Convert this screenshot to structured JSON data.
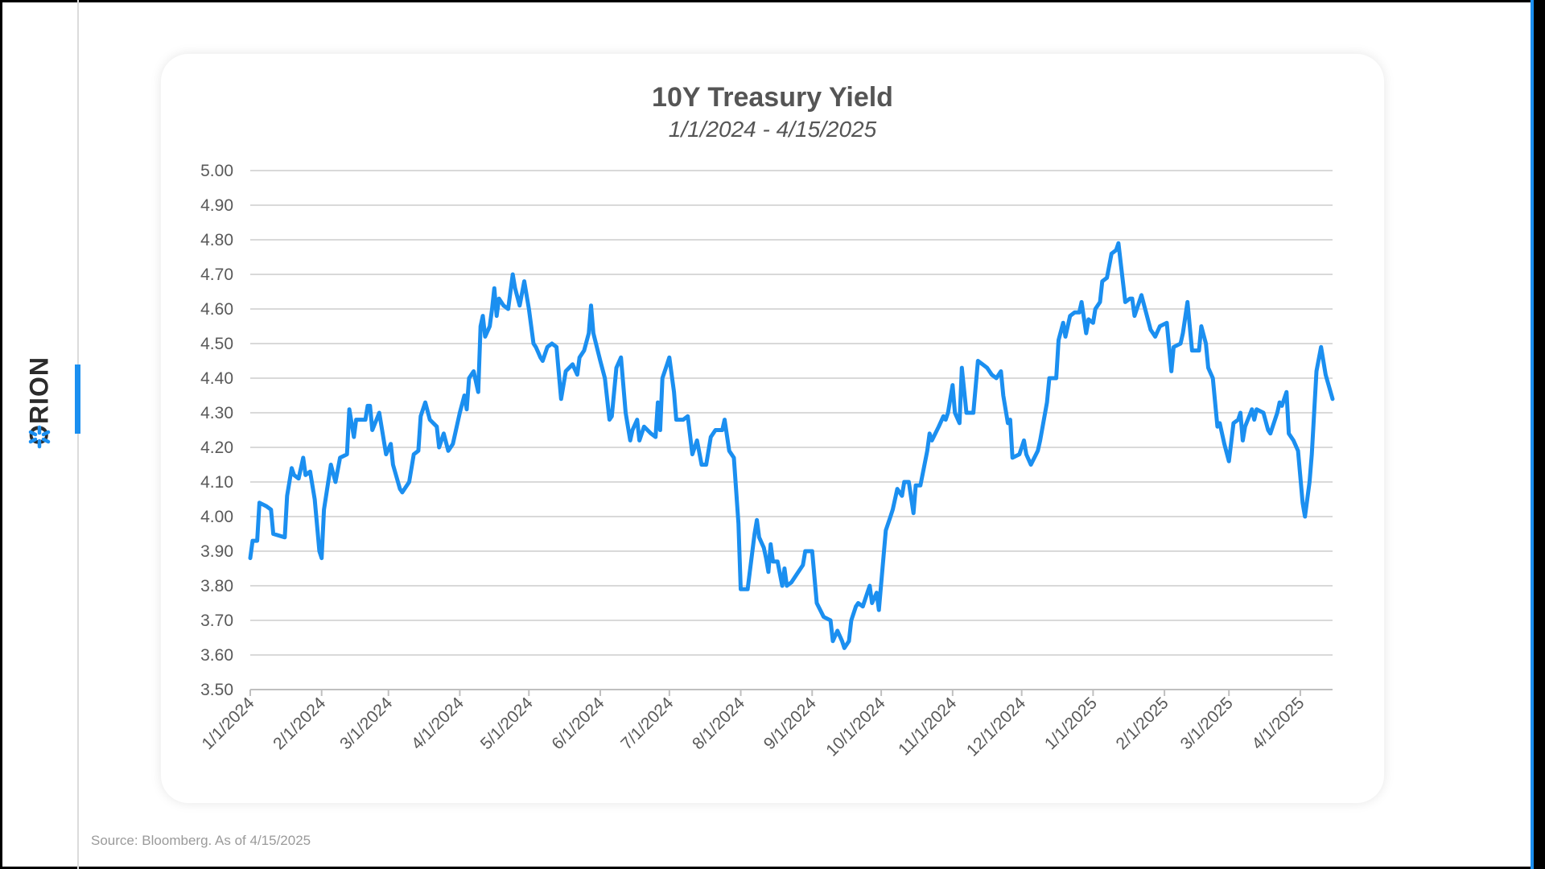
{
  "brand": {
    "logo_text": "ORION",
    "accent": "#1b8ff0"
  },
  "footer": {
    "source": "Source: Bloomberg. As of 4/15/2025"
  },
  "chart_data": {
    "type": "line",
    "title": "10Y Treasury Yield",
    "subtitle": "1/1/2024 - 4/15/2025",
    "xlabel": "",
    "ylabel": "",
    "x_unit": "days since 1/1/2024",
    "xlim": [
      0,
      470
    ],
    "ylim": [
      3.5,
      5.0
    ],
    "grid": true,
    "legend": "none",
    "line_color": "#1b8ff0",
    "y_ticks": [
      "3.50",
      "3.60",
      "3.70",
      "3.80",
      "3.90",
      "4.00",
      "4.10",
      "4.20",
      "4.30",
      "4.40",
      "4.50",
      "4.60",
      "4.70",
      "4.80",
      "4.90",
      "5.00"
    ],
    "x_ticks": [
      {
        "label": "1/1/2024",
        "day": 0
      },
      {
        "label": "2/1/2024",
        "day": 31
      },
      {
        "label": "3/1/2024",
        "day": 60
      },
      {
        "label": "4/1/2024",
        "day": 91
      },
      {
        "label": "5/1/2024",
        "day": 121
      },
      {
        "label": "6/1/2024",
        "day": 152
      },
      {
        "label": "7/1/2024",
        "day": 182
      },
      {
        "label": "8/1/2024",
        "day": 213
      },
      {
        "label": "9/1/2024",
        "day": 244
      },
      {
        "label": "10/1/2024",
        "day": 274
      },
      {
        "label": "11/1/2024",
        "day": 305
      },
      {
        "label": "12/1/2024",
        "day": 335
      },
      {
        "label": "1/1/2025",
        "day": 366
      },
      {
        "label": "2/1/2025",
        "day": 397
      },
      {
        "label": "3/1/2025",
        "day": 425
      },
      {
        "label": "4/1/2025",
        "day": 456
      }
    ],
    "series": [
      {
        "name": "10Y Treasury Yield",
        "points": [
          [
            0,
            3.88
          ],
          [
            1,
            3.93
          ],
          [
            3,
            3.93
          ],
          [
            4,
            4.04
          ],
          [
            7,
            4.03
          ],
          [
            9,
            4.02
          ],
          [
            10,
            3.95
          ],
          [
            15,
            3.94
          ],
          [
            16,
            4.06
          ],
          [
            18,
            4.14
          ],
          [
            19,
            4.12
          ],
          [
            21,
            4.11
          ],
          [
            23,
            4.17
          ],
          [
            24,
            4.12
          ],
          [
            26,
            4.13
          ],
          [
            28,
            4.05
          ],
          [
            30,
            3.9
          ],
          [
            31,
            3.88
          ],
          [
            32,
            4.02
          ],
          [
            35,
            4.15
          ],
          [
            37,
            4.1
          ],
          [
            39,
            4.17
          ],
          [
            42,
            4.18
          ],
          [
            43,
            4.31
          ],
          [
            45,
            4.23
          ],
          [
            46,
            4.28
          ],
          [
            50,
            4.28
          ],
          [
            51,
            4.32
          ],
          [
            52,
            4.32
          ],
          [
            53,
            4.25
          ],
          [
            56,
            4.3
          ],
          [
            59,
            4.18
          ],
          [
            61,
            4.21
          ],
          [
            62,
            4.15
          ],
          [
            65,
            4.08
          ],
          [
            66,
            4.07
          ],
          [
            69,
            4.1
          ],
          [
            71,
            4.18
          ],
          [
            73,
            4.19
          ],
          [
            74,
            4.29
          ],
          [
            76,
            4.33
          ],
          [
            78,
            4.28
          ],
          [
            81,
            4.26
          ],
          [
            82,
            4.2
          ],
          [
            84,
            4.24
          ],
          [
            86,
            4.19
          ],
          [
            88,
            4.21
          ],
          [
            91,
            4.3
          ],
          [
            93,
            4.35
          ],
          [
            94,
            4.31
          ],
          [
            95,
            4.4
          ],
          [
            97,
            4.42
          ],
          [
            99,
            4.36
          ],
          [
            100,
            4.55
          ],
          [
            101,
            4.58
          ],
          [
            102,
            4.52
          ],
          [
            104,
            4.55
          ],
          [
            105,
            4.6
          ],
          [
            106,
            4.66
          ],
          [
            107,
            4.58
          ],
          [
            108,
            4.63
          ],
          [
            110,
            4.61
          ],
          [
            112,
            4.6
          ],
          [
            114,
            4.7
          ],
          [
            115,
            4.66
          ],
          [
            117,
            4.61
          ],
          [
            119,
            4.68
          ],
          [
            121,
            4.6
          ],
          [
            123,
            4.5
          ],
          [
            124,
            4.49
          ],
          [
            126,
            4.46
          ],
          [
            127,
            4.45
          ],
          [
            129,
            4.49
          ],
          [
            131,
            4.5
          ],
          [
            133,
            4.49
          ],
          [
            135,
            4.34
          ],
          [
            137,
            4.42
          ],
          [
            140,
            4.44
          ],
          [
            142,
            4.41
          ],
          [
            143,
            4.46
          ],
          [
            145,
            4.48
          ],
          [
            147,
            4.53
          ],
          [
            148,
            4.61
          ],
          [
            149,
            4.53
          ],
          [
            152,
            4.45
          ],
          [
            154,
            4.4
          ],
          [
            156,
            4.28
          ],
          [
            157,
            4.29
          ],
          [
            159,
            4.43
          ],
          [
            161,
            4.46
          ],
          [
            163,
            4.3
          ],
          [
            165,
            4.22
          ],
          [
            166,
            4.25
          ],
          [
            168,
            4.28
          ],
          [
            169,
            4.22
          ],
          [
            171,
            4.26
          ],
          [
            174,
            4.24
          ],
          [
            176,
            4.23
          ],
          [
            177,
            4.33
          ],
          [
            178,
            4.25
          ],
          [
            179,
            4.4
          ],
          [
            181,
            4.44
          ],
          [
            182,
            4.46
          ],
          [
            184,
            4.36
          ],
          [
            185,
            4.28
          ],
          [
            188,
            4.28
          ],
          [
            190,
            4.29
          ],
          [
            192,
            4.18
          ],
          [
            194,
            4.22
          ],
          [
            196,
            4.15
          ],
          [
            198,
            4.15
          ],
          [
            200,
            4.23
          ],
          [
            202,
            4.25
          ],
          [
            205,
            4.25
          ],
          [
            206,
            4.28
          ],
          [
            208,
            4.19
          ],
          [
            210,
            4.17
          ],
          [
            212,
            3.98
          ],
          [
            213,
            3.79
          ],
          [
            216,
            3.79
          ],
          [
            219,
            3.95
          ],
          [
            220,
            3.99
          ],
          [
            221,
            3.94
          ],
          [
            223,
            3.91
          ],
          [
            224,
            3.88
          ],
          [
            225,
            3.84
          ],
          [
            226,
            3.92
          ],
          [
            227,
            3.87
          ],
          [
            229,
            3.87
          ],
          [
            231,
            3.8
          ],
          [
            232,
            3.85
          ],
          [
            233,
            3.8
          ],
          [
            235,
            3.81
          ],
          [
            237,
            3.83
          ],
          [
            240,
            3.86
          ],
          [
            241,
            3.9
          ],
          [
            244,
            3.9
          ],
          [
            246,
            3.75
          ],
          [
            249,
            3.71
          ],
          [
            252,
            3.7
          ],
          [
            253,
            3.64
          ],
          [
            255,
            3.67
          ],
          [
            257,
            3.64
          ],
          [
            258,
            3.62
          ],
          [
            260,
            3.64
          ],
          [
            261,
            3.7
          ],
          [
            263,
            3.74
          ],
          [
            264,
            3.75
          ],
          [
            266,
            3.74
          ],
          [
            268,
            3.78
          ],
          [
            269,
            3.8
          ],
          [
            270,
            3.75
          ],
          [
            272,
            3.78
          ],
          [
            273,
            3.73
          ],
          [
            276,
            3.96
          ],
          [
            278,
            4.0
          ],
          [
            279,
            4.02
          ],
          [
            281,
            4.08
          ],
          [
            283,
            4.06
          ],
          [
            284,
            4.1
          ],
          [
            286,
            4.1
          ],
          [
            288,
            4.01
          ],
          [
            289,
            4.09
          ],
          [
            291,
            4.09
          ],
          [
            294,
            4.19
          ],
          [
            295,
            4.24
          ],
          [
            296,
            4.22
          ],
          [
            299,
            4.26
          ],
          [
            301,
            4.29
          ],
          [
            302,
            4.28
          ],
          [
            303,
            4.3
          ],
          [
            305,
            4.38
          ],
          [
            306,
            4.3
          ],
          [
            308,
            4.27
          ],
          [
            309,
            4.43
          ],
          [
            311,
            4.3
          ],
          [
            314,
            4.3
          ],
          [
            316,
            4.45
          ],
          [
            318,
            4.44
          ],
          [
            320,
            4.43
          ],
          [
            322,
            4.41
          ],
          [
            324,
            4.4
          ],
          [
            326,
            4.42
          ],
          [
            327,
            4.35
          ],
          [
            329,
            4.27
          ],
          [
            330,
            4.28
          ],
          [
            331,
            4.17
          ],
          [
            334,
            4.18
          ],
          [
            336,
            4.22
          ],
          [
            337,
            4.18
          ],
          [
            339,
            4.15
          ],
          [
            342,
            4.19
          ],
          [
            343,
            4.22
          ],
          [
            346,
            4.33
          ],
          [
            347,
            4.4
          ],
          [
            350,
            4.4
          ],
          [
            351,
            4.51
          ],
          [
            353,
            4.56
          ],
          [
            354,
            4.52
          ],
          [
            356,
            4.58
          ],
          [
            358,
            4.59
          ],
          [
            360,
            4.59
          ],
          [
            361,
            4.62
          ],
          [
            363,
            4.53
          ],
          [
            364,
            4.57
          ],
          [
            366,
            4.56
          ],
          [
            367,
            4.6
          ],
          [
            369,
            4.62
          ],
          [
            370,
            4.68
          ],
          [
            372,
            4.69
          ],
          [
            374,
            4.76
          ],
          [
            376,
            4.77
          ],
          [
            377,
            4.79
          ],
          [
            380,
            4.62
          ],
          [
            382,
            4.63
          ],
          [
            383,
            4.63
          ],
          [
            384,
            4.58
          ],
          [
            387,
            4.64
          ],
          [
            389,
            4.59
          ],
          [
            391,
            4.54
          ],
          [
            392,
            4.53
          ],
          [
            393,
            4.52
          ],
          [
            395,
            4.55
          ],
          [
            398,
            4.56
          ],
          [
            400,
            4.42
          ],
          [
            401,
            4.49
          ],
          [
            404,
            4.5
          ],
          [
            405,
            4.53
          ],
          [
            407,
            4.62
          ],
          [
            409,
            4.48
          ],
          [
            412,
            4.48
          ],
          [
            413,
            4.55
          ],
          [
            415,
            4.5
          ],
          [
            416,
            4.43
          ],
          [
            418,
            4.4
          ],
          [
            420,
            4.26
          ],
          [
            421,
            4.27
          ],
          [
            423,
            4.21
          ],
          [
            425,
            4.16
          ],
          [
            427,
            4.27
          ],
          [
            429,
            4.28
          ],
          [
            430,
            4.3
          ],
          [
            431,
            4.22
          ],
          [
            432,
            4.26
          ],
          [
            435,
            4.31
          ],
          [
            436,
            4.28
          ],
          [
            437,
            4.31
          ],
          [
            440,
            4.3
          ],
          [
            442,
            4.25
          ],
          [
            443,
            4.24
          ],
          [
            446,
            4.3
          ],
          [
            447,
            4.33
          ],
          [
            448,
            4.32
          ],
          [
            450,
            4.36
          ],
          [
            451,
            4.24
          ],
          [
            453,
            4.22
          ],
          [
            455,
            4.19
          ],
          [
            457,
            4.04
          ],
          [
            458,
            4.0
          ],
          [
            460,
            4.1
          ],
          [
            461,
            4.18
          ],
          [
            462,
            4.3
          ],
          [
            463,
            4.42
          ],
          [
            465,
            4.49
          ],
          [
            467,
            4.41
          ],
          [
            470,
            4.34
          ]
        ]
      }
    ]
  }
}
